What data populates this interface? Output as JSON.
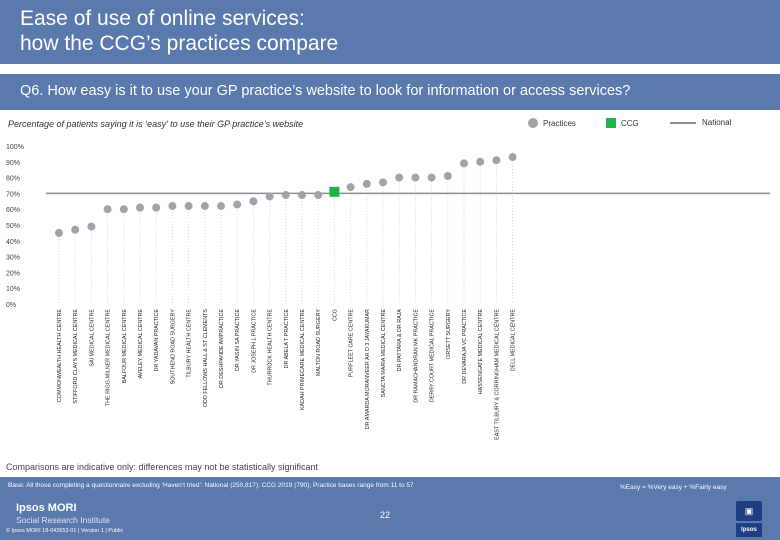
{
  "header": {
    "title_line1": "Ease of use of online services:",
    "title_line2": "how the CCG’s practices compare",
    "question": "Q6. How easy is it to use your GP practice’s website to look for information or access services?"
  },
  "chart_data": {
    "type": "scatter",
    "title": "Percentage of patients saying it is ‘easy’ to use their GP practice’s website",
    "ylabel": "",
    "ylim": [
      0,
      100
    ],
    "yticks": [
      "0%",
      "10%",
      "20%",
      "30%",
      "40%",
      "50%",
      "60%",
      "70%",
      "80%",
      "90%",
      "100%"
    ],
    "legend": {
      "practices": "Practices",
      "ccg": "CCG",
      "national": "National"
    },
    "national_value": 70,
    "categories": [
      "COMMONWEALTH HEALTH CENTRE",
      "STIFFORD CLAYS MEDICAL CENTRE",
      "SAI MEDICAL CENTRE",
      "THE RIGG-MILNER MEDICAL CENTRE",
      "BALFOUR MEDICAL CENTRE",
      "AVELEY MEDICAL CENTRE",
      "DR YADAVAN PRACTICE",
      "SOUTHEND ROAD SURGERY",
      "TILBURY HEALTH CENTRE",
      "ODD FELLOWS HALL & ST CLEMENTS",
      "DR DESHPANDE AMPRACTICE",
      "DR YASIN SA PRACTICE",
      "DR JOSEPH L PRACTICE",
      "THURROCK HEALTH CENTRE",
      "DR ABELA T PRACTICE",
      "KADAH PRIMECARE MEDICAL CENTRE",
      "MALTON ROAD SURGERY",
      "CCG",
      "PURFLEET CARE CENTRE",
      "DR AMARDA MORANVEER AR D 3 JAYAKUMAR",
      "SANCTA MARIA MEDICAL CENTRE",
      "DR PATTARA & DR RAJA",
      "DR RAMACHANDRAN MK PRACTICE",
      "DERRY COURT MEDICAL PRACTICE",
      "ORSETT SURGERY",
      "DR DEVARAJA VC PRACTICE",
      "HASSENGATE MEDICAL CENTRE",
      "EAST TILBURY & CORRINGHAM MEDICAL CENTRE",
      "DELL MEDICAL CENTRE"
    ],
    "values": [
      45,
      47,
      49,
      60,
      60,
      61,
      61,
      62,
      62,
      62,
      62,
      63,
      65,
      68,
      69,
      69,
      69,
      71,
      74,
      76,
      77,
      80,
      80,
      80,
      81,
      89,
      90,
      91,
      93
    ],
    "ccg_index": 17
  },
  "notes": {
    "comparison": "Comparisons are indicative only: differences may not be statistically significant",
    "base": "Base: All those completing a questionnaire excluding ‘Haven’t tried’: National (250,817); CCG 2019 (790); Practice bases range from 11 to 57",
    "easy_definition": "%Easy = %Very easy + %Fairly easy"
  },
  "footer": {
    "brand_line1": "Ipsos MORI",
    "brand_line2": "Social Research Institute",
    "copyright": "© Ipsos MORI   18-042653-01 | Version 1 | Public",
    "page_number": "22",
    "nhs_mark": "▣",
    "ipsos_mark": "Ipsos"
  },
  "colors": {
    "header_bg": "#5a79ad",
    "practice_dot": "#9ea4ac",
    "ccg_marker": "#1eb44a",
    "national_line": "#8a8f96"
  }
}
